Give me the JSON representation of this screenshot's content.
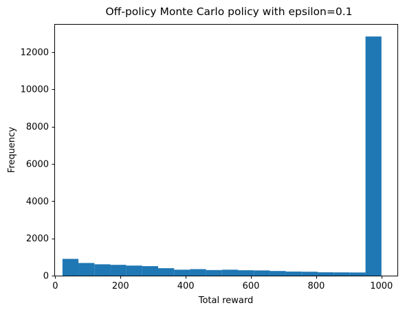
{
  "chart_data": {
    "type": "bar",
    "subtype": "histogram",
    "title": "Off-policy Monte Carlo policy with epsilon=0.1",
    "xlabel": "Total reward",
    "ylabel": "Frequency",
    "xlim": [
      -3,
      1049
    ],
    "ylim": [
      0,
      13500
    ],
    "xticks": [
      0,
      200,
      400,
      600,
      800,
      1000
    ],
    "yticks": [
      0,
      2000,
      4000,
      6000,
      8000,
      10000,
      12000
    ],
    "grid": false,
    "legend": "none",
    "color": "#1f77b4",
    "bin_start": 22,
    "bin_width": 48.9,
    "bins": [
      {
        "x0": 22.0,
        "x1": 70.9,
        "value": 900
      },
      {
        "x0": 70.9,
        "x1": 119.8,
        "value": 680
      },
      {
        "x0": 119.8,
        "x1": 168.7,
        "value": 610
      },
      {
        "x0": 168.7,
        "x1": 217.6,
        "value": 580
      },
      {
        "x0": 217.6,
        "x1": 266.5,
        "value": 540
      },
      {
        "x0": 266.5,
        "x1": 315.4,
        "value": 510
      },
      {
        "x0": 315.4,
        "x1": 364.3,
        "value": 400
      },
      {
        "x0": 364.3,
        "x1": 413.2,
        "value": 320
      },
      {
        "x0": 413.2,
        "x1": 462.1,
        "value": 350
      },
      {
        "x0": 462.1,
        "x1": 511.0,
        "value": 300
      },
      {
        "x0": 511.0,
        "x1": 559.9,
        "value": 320
      },
      {
        "x0": 559.9,
        "x1": 608.8,
        "value": 290
      },
      {
        "x0": 608.8,
        "x1": 657.7,
        "value": 280
      },
      {
        "x0": 657.7,
        "x1": 706.6,
        "value": 250
      },
      {
        "x0": 706.6,
        "x1": 755.5,
        "value": 220
      },
      {
        "x0": 755.5,
        "x1": 804.4,
        "value": 210
      },
      {
        "x0": 804.4,
        "x1": 853.3,
        "value": 180
      },
      {
        "x0": 853.3,
        "x1": 902.2,
        "value": 175
      },
      {
        "x0": 902.2,
        "x1": 951.1,
        "value": 170
      },
      {
        "x0": 951.1,
        "x1": 1000.0,
        "value": 12830
      }
    ]
  }
}
